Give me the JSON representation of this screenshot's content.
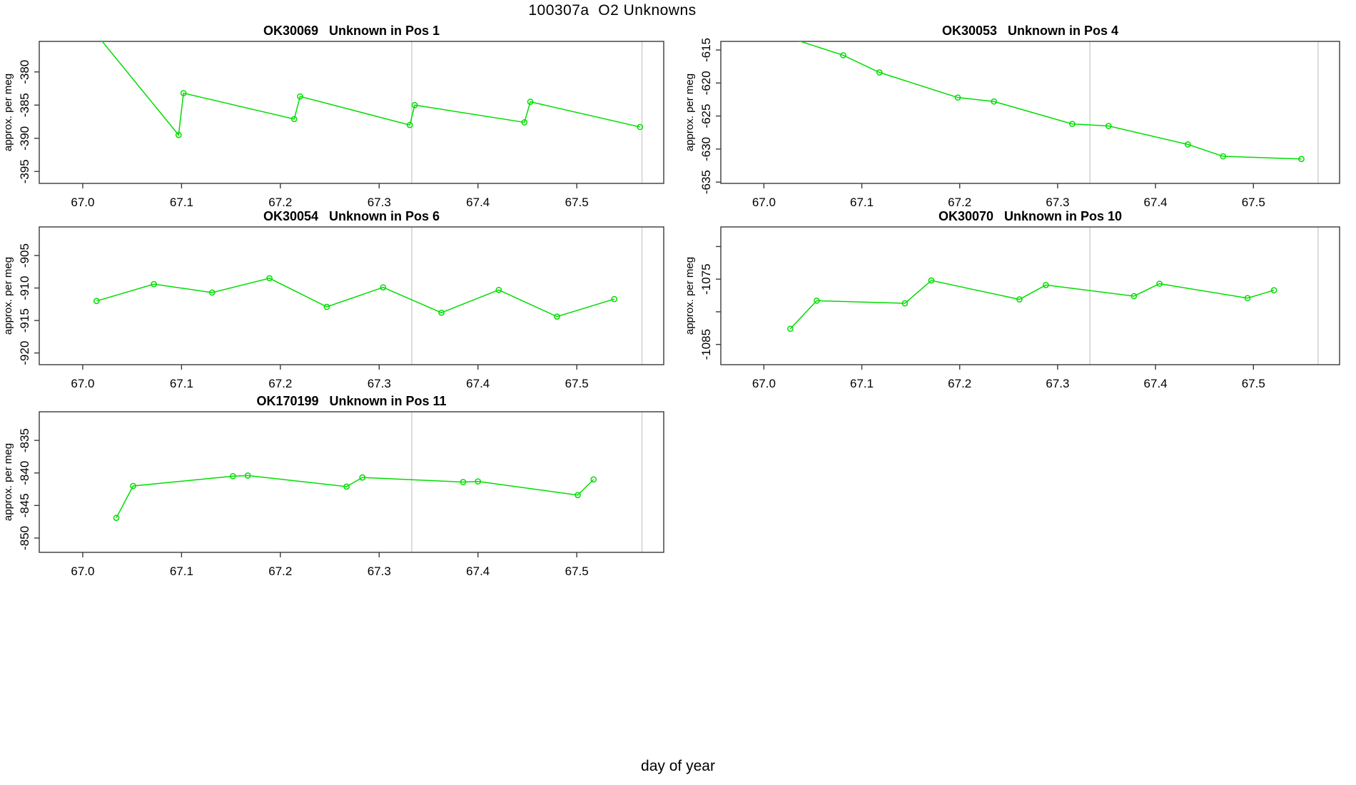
{
  "figure": {
    "main_title": "100307a  O2 Unknowns",
    "x_axis_label": "day of year"
  },
  "colors": {
    "series_green": "#00dd00",
    "reference_line": "#d3d3d3",
    "axis_box": "#3a3a3a",
    "text": "#000000"
  },
  "reference_lines_x": [
    67.333,
    67.566
  ],
  "shared_x": {
    "xlim": [
      66.956,
      67.588
    ],
    "xticks": [
      67.0,
      67.1,
      67.2,
      67.3,
      67.4,
      67.5
    ],
    "xtick_labels": [
      "67.0",
      "67.1",
      "67.2",
      "67.3",
      "67.4",
      "67.5"
    ]
  },
  "chart_data": [
    {
      "type": "line",
      "sample_id": "OK30069",
      "position_label": "Unknown in Pos 1",
      "title": "OK30069   Unknown in Pos 1",
      "ylabel": "approx. per meg",
      "grid": {
        "row": 0,
        "col": 0
      },
      "ylim": [
        -396.8,
        -375.4
      ],
      "yticks": [
        {
          "v": -395,
          "label": "-395"
        },
        {
          "v": -390,
          "label": "-390"
        },
        {
          "v": -385,
          "label": "-385"
        },
        {
          "v": -380,
          "label": "-380"
        }
      ],
      "lead_in": [
        67.0,
        -371.8
      ],
      "x": [
        67.097,
        67.102,
        67.214,
        67.22,
        67.331,
        67.336,
        67.447,
        67.453,
        67.564
      ],
      "y": [
        -389.5,
        -383.2,
        -387.1,
        -383.7,
        -388.0,
        -385.0,
        -387.6,
        -384.5,
        -388.3
      ]
    },
    {
      "type": "line",
      "sample_id": "OK30053",
      "position_label": "Unknown in Pos 4",
      "title": "OK30053   Unknown in Pos 4",
      "ylabel": "approx. per meg",
      "grid": {
        "row": 0,
        "col": 1
      },
      "ylim": [
        -635.2,
        -613.7
      ],
      "yticks": [
        {
          "v": -635,
          "label": "-635"
        },
        {
          "v": -630,
          "label": "-630"
        },
        {
          "v": -625,
          "label": "-625"
        },
        {
          "v": -620,
          "label": "-620"
        },
        {
          "v": -615,
          "label": "-615"
        }
      ],
      "lead_in": [
        67.0,
        -611.9
      ],
      "x": [
        67.081,
        67.118,
        67.198,
        67.235,
        67.315,
        67.352,
        67.433,
        67.469,
        67.549
      ],
      "y": [
        -615.8,
        -618.4,
        -622.2,
        -622.8,
        -626.2,
        -626.5,
        -629.3,
        -631.1,
        -631.5
      ]
    },
    {
      "type": "line",
      "sample_id": "OK30054",
      "position_label": "Unknown in Pos 6",
      "title": "OK30054   Unknown in Pos 6",
      "ylabel": "approx. per meg",
      "grid": {
        "row": 1,
        "col": 0
      },
      "ylim": [
        -921.8,
        -900.6
      ],
      "yticks": [
        {
          "v": -920,
          "label": "-920"
        },
        {
          "v": -915,
          "label": "-915"
        },
        {
          "v": -910,
          "label": "-910"
        },
        {
          "v": -905,
          "label": "-905"
        }
      ],
      "lead_in": null,
      "x": [
        67.014,
        67.072,
        67.131,
        67.189,
        67.247,
        67.304,
        67.363,
        67.421,
        67.48,
        67.538
      ],
      "y": [
        -912.0,
        -909.4,
        -910.7,
        -908.5,
        -912.9,
        -909.9,
        -913.8,
        -910.3,
        -914.4,
        -911.7
      ]
    },
    {
      "type": "line",
      "sample_id": "OK30070",
      "position_label": "Unknown in Pos 10",
      "title": "OK30070   Unknown in Pos 10",
      "ylabel": "approx. per meg",
      "grid": {
        "row": 1,
        "col": 1
      },
      "ylim": [
        -1088.1,
        -1067.0
      ],
      "yticks": [
        {
          "v": -1085,
          "label": "-1085"
        },
        {
          "v": -1080,
          "label": ""
        },
        {
          "v": -1075,
          "label": "-1075"
        },
        {
          "v": -1070,
          "label": ""
        }
      ],
      "lead_in": null,
      "x": [
        67.027,
        67.054,
        67.144,
        67.171,
        67.261,
        67.288,
        67.378,
        67.404,
        67.494,
        67.521
      ],
      "y": [
        -1082.6,
        -1078.3,
        -1078.7,
        -1075.2,
        -1078.1,
        -1075.9,
        -1077.6,
        -1075.7,
        -1077.9,
        -1076.7
      ]
    },
    {
      "type": "line",
      "sample_id": "OK170199",
      "position_label": "Unknown in Pos 11",
      "title": "OK170199   Unknown in Pos 11",
      "ylabel": "approx. per meg",
      "grid": {
        "row": 2,
        "col": 0
      },
      "ylim": [
        -852.2,
        -830.6
      ],
      "yticks": [
        {
          "v": -850,
          "label": "-850"
        },
        {
          "v": -845,
          "label": "-845"
        },
        {
          "v": -840,
          "label": "-840"
        },
        {
          "v": -835,
          "label": "-835"
        }
      ],
      "lead_in": null,
      "x": [
        67.034,
        67.051,
        67.152,
        67.167,
        67.267,
        67.283,
        67.385,
        67.4,
        67.501,
        67.517
      ],
      "y": [
        -846.9,
        -842.0,
        -840.5,
        -840.4,
        -842.1,
        -840.7,
        -841.4,
        -841.3,
        -843.4,
        -841.0
      ]
    }
  ]
}
